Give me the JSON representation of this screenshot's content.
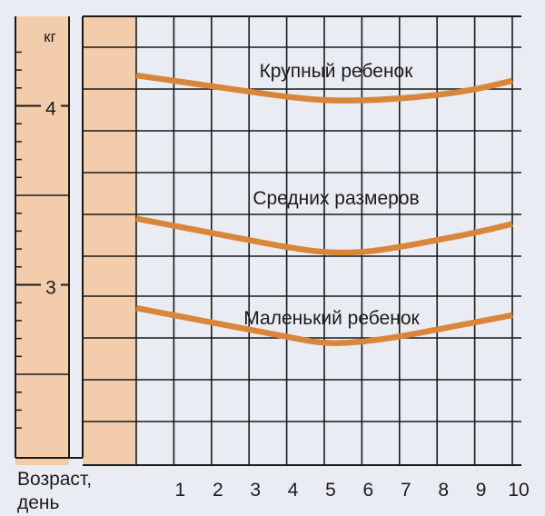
{
  "chart_data": {
    "type": "line",
    "y_unit": "кг",
    "xlabel_line1": "Возраст,",
    "xlabel_line2": "день",
    "x": [
      0,
      1,
      2,
      3,
      4,
      5,
      6,
      7,
      8,
      9,
      10
    ],
    "x_ticks": [
      "1",
      "2",
      "3",
      "4",
      "5",
      "6",
      "7",
      "8",
      "9",
      "10"
    ],
    "y_ticks": [
      "3",
      "4"
    ],
    "ylim": [
      2.08,
      4.5
    ],
    "grid": true,
    "series": [
      {
        "name": "Крупный ребенок",
        "values": [
          4.17,
          4.14,
          4.11,
          4.08,
          4.05,
          4.03,
          4.03,
          4.04,
          4.06,
          4.09,
          4.14
        ]
      },
      {
        "name": "Средних размеров",
        "values": [
          3.37,
          3.33,
          3.29,
          3.25,
          3.21,
          3.18,
          3.18,
          3.21,
          3.25,
          3.29,
          3.34
        ]
      },
      {
        "name": "Маленький ребенок",
        "values": [
          2.87,
          2.83,
          2.79,
          2.75,
          2.71,
          2.67,
          2.68,
          2.71,
          2.75,
          2.79,
          2.83
        ]
      }
    ],
    "colors": {
      "line": "#d9863a",
      "ruler_fill": "#f2ccab",
      "grid": "#1a1a1a",
      "background": "#e9ecf3"
    }
  }
}
